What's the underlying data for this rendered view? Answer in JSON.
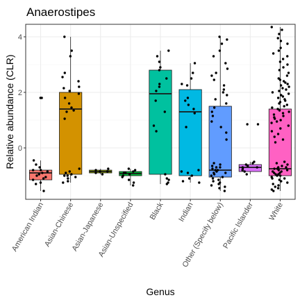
{
  "chart_data": {
    "type": "box",
    "title": "Anaerostipes",
    "xlabel": "Genus",
    "ylabel": "Relative abundance (CLR)",
    "ylim": [
      -1.85,
      4.45
    ],
    "yticks": [
      0,
      2,
      4
    ],
    "grid": true,
    "legend": "none",
    "categories": [
      "American Indian",
      "Asian-Chinese",
      "Asian-Japanese",
      "Asian-Unspecified",
      "Black",
      "Indian",
      "Other (Specify below)",
      "Pacific Islander",
      "White"
    ],
    "colors": [
      "#F8766D",
      "#D39200",
      "#93AA00",
      "#00BA38",
      "#00C19F",
      "#00B9E3",
      "#619CFF",
      "#DB72FB",
      "#FF61C3"
    ],
    "boxes": [
      {
        "category": "American Indian",
        "lower_whisker": -1.55,
        "q1": -1.15,
        "median": -0.9,
        "q3": -0.8,
        "upper_whisker": -0.45,
        "points": [
          1.8,
          1.8,
          -0.45,
          -0.6,
          -0.7,
          -0.8,
          -0.8,
          -0.85,
          -0.9,
          -0.95,
          -1.0,
          -1.05,
          -1.1,
          -1.15,
          -1.25,
          -1.3,
          -1.55
        ]
      },
      {
        "category": "Asian-Chinese",
        "lower_whisker": -1.25,
        "q1": -0.95,
        "median": 1.4,
        "q3": 2.0,
        "upper_whisker": 4.0,
        "points": [
          4.0,
          3.5,
          3.3,
          2.7,
          2.55,
          2.4,
          2.2,
          2.15,
          2.05,
          1.95,
          1.8,
          1.6,
          1.45,
          1.35,
          1.3,
          1.05,
          -0.75,
          -0.85,
          -0.9,
          -0.95,
          -1.0,
          -1.0,
          -1.05,
          -1.1,
          -1.2,
          -1.25
        ]
      },
      {
        "category": "Asian-Japanese",
        "lower_whisker": -0.95,
        "q1": -0.9,
        "median": -0.85,
        "q3": -0.8,
        "upper_whisker": -0.75,
        "points": [
          -0.75,
          -0.8,
          -0.85,
          -0.85,
          -0.9,
          -0.95
        ]
      },
      {
        "category": "Asian-Unspecified",
        "lower_whisker": -1.35,
        "q1": -1.0,
        "median": -0.92,
        "q3": -0.85,
        "upper_whisker": -0.75,
        "points": [
          -0.75,
          -0.8,
          -0.85,
          -0.9,
          -0.9,
          -0.95,
          -1.0,
          -1.05,
          -1.15,
          -1.25,
          -1.35
        ]
      },
      {
        "category": "Black",
        "lower_whisker": -1.3,
        "q1": -0.95,
        "median": 1.95,
        "q3": 2.8,
        "upper_whisker": 3.5,
        "points": [
          3.5,
          3.3,
          3.1,
          2.9,
          2.8,
          2.5,
          2.3,
          2.2,
          2.05,
          1.7,
          1.3,
          0.8,
          0.6,
          -0.95,
          -1.1,
          -1.15,
          -1.25,
          -1.3
        ]
      },
      {
        "category": "Indian",
        "lower_whisker": -1.25,
        "q1": -1.0,
        "median": 1.3,
        "q3": 2.1,
        "upper_whisker": 3.05,
        "points": [
          3.05,
          2.7,
          2.5,
          2.3,
          2.25,
          1.8,
          1.7,
          1.55,
          1.4,
          1.25,
          0.75,
          -0.8,
          -0.85,
          -0.9,
          -1.0,
          -1.1,
          -1.2,
          -1.25
        ]
      },
      {
        "category": "Other (Specify below)",
        "lower_whisker": -1.55,
        "q1": -1.05,
        "median": -0.8,
        "q3": 1.5,
        "upper_whisker": 4.0,
        "points": [
          4.0,
          3.9,
          3.75,
          3.5,
          3.3,
          3.05,
          2.85,
          2.7,
          2.6,
          2.45,
          2.25,
          2.1,
          2.0,
          1.9,
          1.75,
          1.6,
          1.45,
          1.3,
          1.15,
          0.95,
          0.75,
          0.55,
          0.3,
          -0.55,
          -0.6,
          -0.65,
          -0.7,
          -0.7,
          -0.75,
          -0.8,
          -0.8,
          -0.85,
          -0.9,
          -0.9,
          -0.95,
          -1.0,
          -1.05,
          -1.1,
          -1.15,
          -1.2,
          -1.25,
          -1.3,
          -1.35,
          -1.4,
          -1.45,
          -1.55
        ]
      },
      {
        "category": "Pacific Islander",
        "lower_whisker": -0.95,
        "q1": -0.85,
        "median": -0.7,
        "q3": -0.6,
        "upper_whisker": -0.5,
        "points": [
          0.85,
          0.85,
          -0.5,
          -0.55,
          -0.6,
          -0.65,
          -0.7,
          -0.7,
          -0.75,
          -0.8,
          -0.85,
          -0.95
        ]
      },
      {
        "category": "White",
        "lower_whisker": -1.55,
        "q1": -1.0,
        "median": -0.75,
        "q3": 1.4,
        "upper_whisker": 4.35,
        "points": [
          4.35,
          4.25,
          4.1,
          3.95,
          3.85,
          3.75,
          3.6,
          3.5,
          3.4,
          3.3,
          3.2,
          3.1,
          3.0,
          2.9,
          2.8,
          2.7,
          2.6,
          2.5,
          2.45,
          2.4,
          2.35,
          2.3,
          2.25,
          2.2,
          2.15,
          2.1,
          2.05,
          2.0,
          1.95,
          1.9,
          1.85,
          1.8,
          1.75,
          1.7,
          1.65,
          1.6,
          1.55,
          1.5,
          1.45,
          1.4,
          1.35,
          1.3,
          1.25,
          1.2,
          1.15,
          1.1,
          1.05,
          1.0,
          0.95,
          0.9,
          0.8,
          0.7,
          0.6,
          0.5,
          0.4,
          0.3,
          0.2,
          -0.5,
          -0.55,
          -0.6,
          -0.65,
          -0.7,
          -0.7,
          -0.75,
          -0.75,
          -0.8,
          -0.8,
          -0.85,
          -0.85,
          -0.9,
          -0.9,
          -0.95,
          -0.95,
          -1.0,
          -1.0,
          -1.05,
          -1.1,
          -1.1,
          -1.15,
          -1.2,
          -1.25,
          -1.3,
          -1.35,
          -1.4,
          -1.45,
          -1.5,
          -1.55
        ]
      }
    ]
  }
}
